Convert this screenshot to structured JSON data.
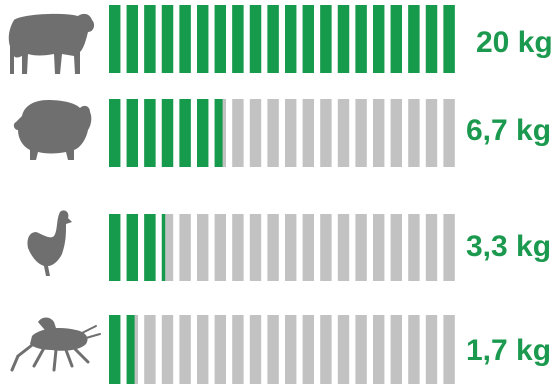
{
  "colors": {
    "filled": "#169a4b",
    "empty": "#c2c2c2",
    "text": "#1b9a4f",
    "icon": "#6f6f6f"
  },
  "chart_data": {
    "type": "bar",
    "orientation": "horizontal",
    "categories": [
      "cow",
      "pig",
      "chicken",
      "cricket"
    ],
    "segments_total": 20,
    "values": [
      20,
      6.7,
      3.3,
      1.7
    ],
    "value_labels": [
      "20 kg",
      "6,7 kg",
      "3,3 kg",
      "1,7 kg"
    ],
    "unit": "kg",
    "xlim": [
      0,
      20
    ],
    "grid": false,
    "legend": "none"
  }
}
